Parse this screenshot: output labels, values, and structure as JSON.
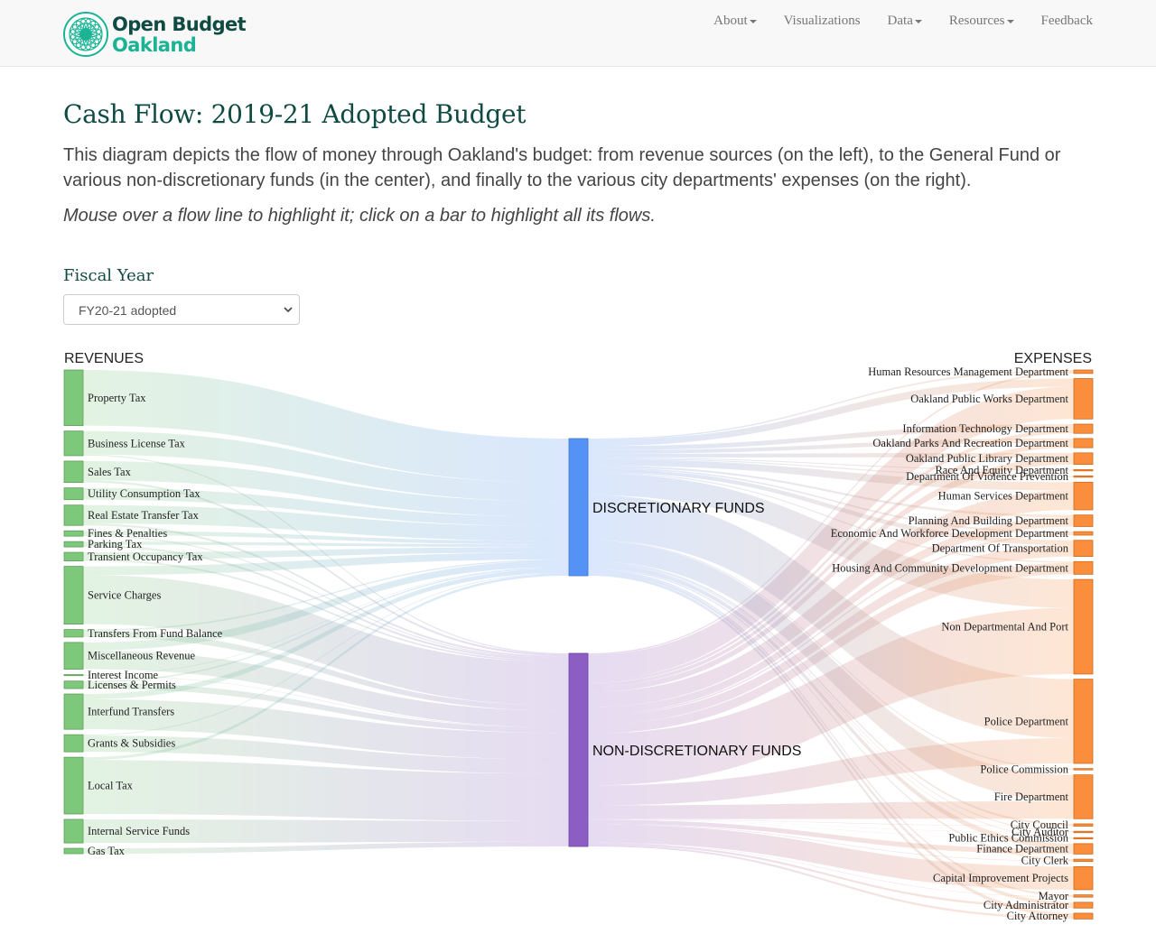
{
  "brand": {
    "line1": "Open Budget",
    "line2": "Oakland",
    "color_dark": "#0f4a43",
    "color_accent": "#1ab394",
    "logo_icon": "rosette-icon"
  },
  "nav": {
    "items": [
      {
        "label": "About",
        "dropdown": true
      },
      {
        "label": "Visualizations",
        "dropdown": false
      },
      {
        "label": "Data",
        "dropdown": true
      },
      {
        "label": "Resources",
        "dropdown": true
      },
      {
        "label": "Feedback",
        "dropdown": false
      }
    ]
  },
  "page": {
    "title": "Cash Flow: 2019-21 Adopted Budget",
    "lead": "This diagram depicts the flow of money through Oakland's budget: from revenue sources (on the left), to the General Fund or various non-discretionary funds (in the center), and finally to the various city departments' expenses (on the right).",
    "hint": "Mouse over a flow line to highlight it; click on a bar to highlight all its flows."
  },
  "fiscal_year": {
    "label": "Fiscal Year",
    "selected": "FY20-21 adopted"
  },
  "sankey": {
    "revenues_header": "REVENUES",
    "expenses_header": "EXPENSES",
    "colors": {
      "revenue": "#7dc87a",
      "expense": "#fa8e3c",
      "discretionary": "#5592f5",
      "non_discretionary": "#8c5ec4"
    },
    "funds": [
      {
        "name": "DISCRETIONARY FUNDS",
        "value": 150
      },
      {
        "name": "NON-DISCRETIONARY FUNDS",
        "value": 213
      }
    ],
    "revenues": [
      {
        "name": "Property Tax",
        "value": 52,
        "disc": 1.0
      },
      {
        "name": "Business License Tax",
        "value": 23,
        "disc": 0.95
      },
      {
        "name": "Sales Tax",
        "value": 20,
        "disc": 0.9
      },
      {
        "name": "Utility Consumption Tax",
        "value": 11,
        "disc": 1.0
      },
      {
        "name": "Real Estate Transfer Tax",
        "value": 19,
        "disc": 0.9
      },
      {
        "name": "Fines & Penalties",
        "value": 5,
        "disc": 0.8
      },
      {
        "name": "Parking Tax",
        "value": 5,
        "disc": 0.6
      },
      {
        "name": "Transient Occupancy Tax",
        "value": 8,
        "disc": 0.8
      },
      {
        "name": "Service Charges",
        "value": 54,
        "disc": 0.15
      },
      {
        "name": "Transfers From Fund Balance",
        "value": 7,
        "disc": 0.2
      },
      {
        "name": "Miscellaneous Revenue",
        "value": 25,
        "disc": 0.3
      },
      {
        "name": "Interest Income",
        "value": 1,
        "disc": 0.5
      },
      {
        "name": "Licenses & Permits",
        "value": 7,
        "disc": 0.2
      },
      {
        "name": "Interfund Transfers",
        "value": 33,
        "disc": 0.15
      },
      {
        "name": "Grants & Subsidies",
        "value": 16,
        "disc": 0.05
      },
      {
        "name": "Local Tax",
        "value": 53,
        "disc": 0.05
      },
      {
        "name": "Internal Service Funds",
        "value": 22,
        "disc": 0.0
      },
      {
        "name": "Gas Tax",
        "value": 5,
        "disc": 0.0
      }
    ],
    "expenses": [
      {
        "name": "Human Resources Management Department",
        "value": 3,
        "disc": 0.5
      },
      {
        "name": "Oakland Public Works Department",
        "value": 35,
        "disc": 0.2
      },
      {
        "name": "Information Technology Department",
        "value": 8,
        "disc": 0.6
      },
      {
        "name": "Oakland Parks And Recreation Department",
        "value": 8,
        "disc": 0.5
      },
      {
        "name": "Oakland Public Library Department",
        "value": 10,
        "disc": 0.4
      },
      {
        "name": "Race And Equity Department",
        "value": 1,
        "disc": 1.0
      },
      {
        "name": "Department Of Violence Prevention",
        "value": 1,
        "disc": 1.0
      },
      {
        "name": "Human Services Department",
        "value": 24,
        "disc": 0.3
      },
      {
        "name": "Planning And Building Department",
        "value": 10,
        "disc": 0.2
      },
      {
        "name": "Economic And Workforce Development Department",
        "value": 3,
        "disc": 0.5
      },
      {
        "name": "Department Of Transportation",
        "value": 14,
        "disc": 0.3
      },
      {
        "name": "Housing And Community Development Department",
        "value": 11,
        "disc": 0.1
      },
      {
        "name": "Non Departmental And Port",
        "value": 82,
        "disc": 0.3
      },
      {
        "name": "Police Department",
        "value": 73,
        "disc": 0.7
      },
      {
        "name": "Police Commission",
        "value": 1,
        "disc": 1.0
      },
      {
        "name": "Fire Department",
        "value": 38,
        "disc": 0.6
      },
      {
        "name": "City Council",
        "value": 2,
        "disc": 0.8
      },
      {
        "name": "City Auditor",
        "value": 1,
        "disc": 0.8
      },
      {
        "name": "Public Ethics Commission",
        "value": 0.5,
        "disc": 0.8
      },
      {
        "name": "Finance Department",
        "value": 9,
        "disc": 0.5
      },
      {
        "name": "City Clerk",
        "value": 2,
        "disc": 0.7
      },
      {
        "name": "Capital Improvement Projects",
        "value": 20,
        "disc": 0.0
      },
      {
        "name": "Mayor",
        "value": 2,
        "disc": 0.8
      },
      {
        "name": "City Administrator",
        "value": 5,
        "disc": 0.6
      },
      {
        "name": "City Attorney",
        "value": 5,
        "disc": 0.6
      }
    ]
  }
}
